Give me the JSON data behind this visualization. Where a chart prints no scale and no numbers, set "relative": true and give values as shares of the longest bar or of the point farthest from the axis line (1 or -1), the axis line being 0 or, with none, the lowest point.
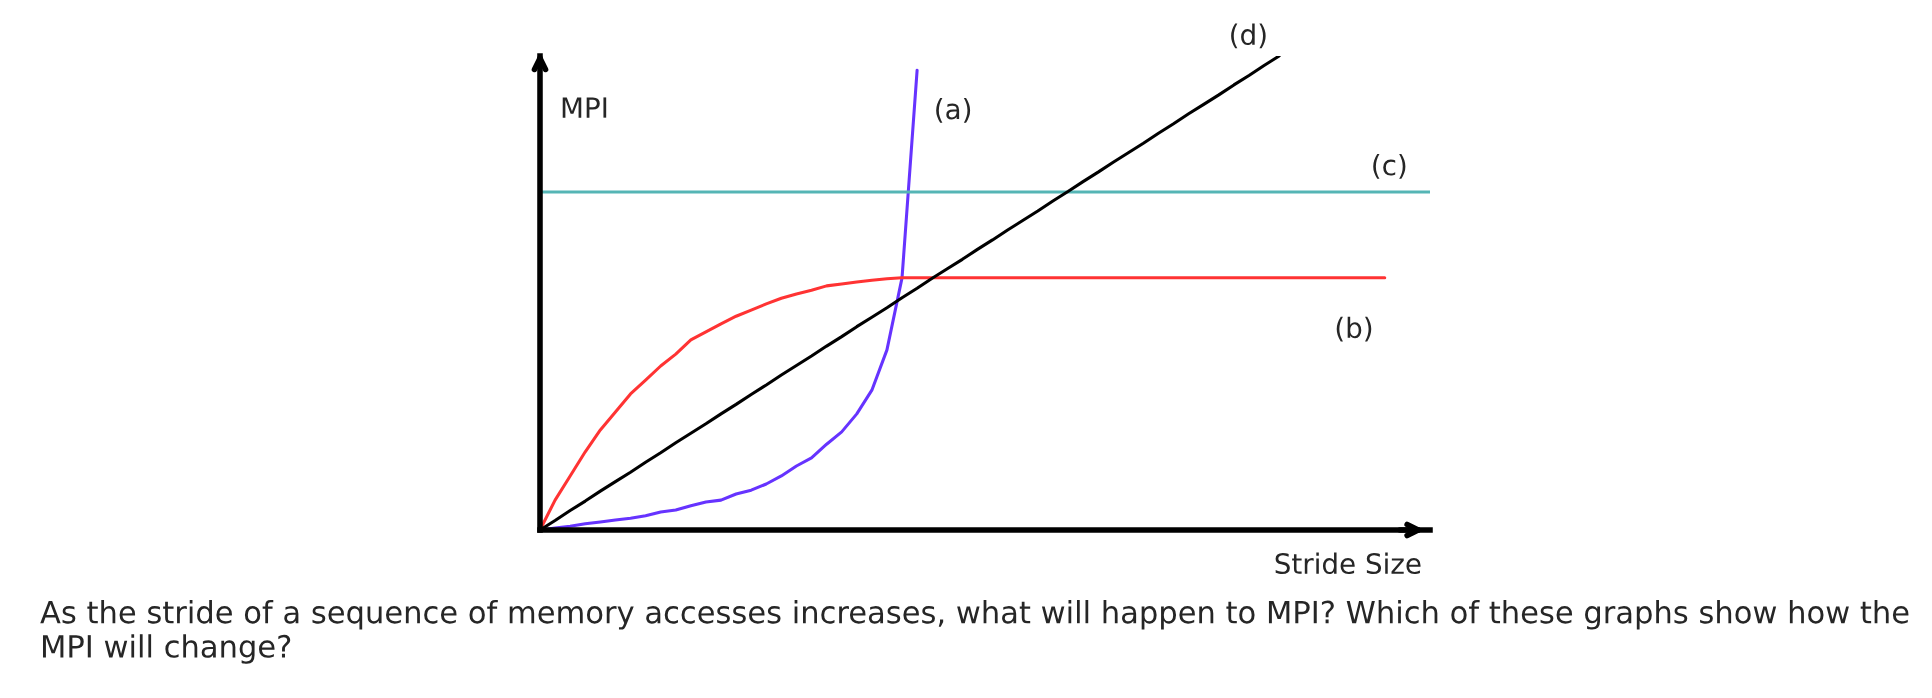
{
  "chart_data": {
    "type": "line",
    "relative": true,
    "xlabel": "Stride Size",
    "ylabel": "MPI",
    "tick_labels": false,
    "legend": false,
    "annotations": [
      "As the stride of a sequence of memory accesses increases, what will happen to MPI? Which of these graphs show how the MPI will change?"
    ],
    "categories": [
      null,
      null,
      null,
      null,
      null,
      null,
      null,
      null,
      null,
      null,
      null,
      null,
      null,
      null,
      null,
      null,
      null,
      null,
      null,
      null,
      null,
      null,
      null,
      null,
      null,
      null,
      null,
      null,
      null,
      null,
      null,
      null,
      null,
      null,
      null,
      null,
      null,
      null,
      null,
      null,
      null,
      null,
      null,
      null,
      null,
      null,
      null,
      null,
      null,
      null,
      null,
      null,
      null,
      null,
      null,
      null,
      null,
      null,
      null,
      null
    ],
    "series": [
      {
        "name": "(a)",
        "color": "#6633ff",
        "values": [
          0,
          0.004,
          0.008,
          0.013,
          0.017,
          0.021,
          0.025,
          0.03,
          0.038,
          0.042,
          0.051,
          0.059,
          0.063,
          0.076,
          0.084,
          0.097,
          0.114,
          0.135,
          0.152,
          0.181,
          0.207,
          0.245,
          0.295,
          0.38,
          0.532,
          0.97,
          null,
          null,
          null,
          null,
          null,
          null,
          null,
          null,
          null,
          null,
          null,
          null,
          null,
          null,
          null,
          null,
          null,
          null,
          null,
          null,
          null,
          null,
          null,
          null,
          null,
          null,
          null,
          null,
          null,
          null,
          null,
          null,
          null,
          null
        ]
      },
      {
        "name": "(b)",
        "color": "#ff3333",
        "values": [
          0,
          0.063,
          0.114,
          0.165,
          0.211,
          0.249,
          0.287,
          0.316,
          0.346,
          0.371,
          0.401,
          0.418,
          0.435,
          0.451,
          0.464,
          0.477,
          0.489,
          0.498,
          0.506,
          0.515,
          0.519,
          0.523,
          0.527,
          0.53,
          0.532,
          0.532,
          0.532,
          0.532,
          0.532,
          0.532,
          0.532,
          0.532,
          0.532,
          0.532,
          0.532,
          0.532,
          0.532,
          0.532,
          0.532,
          0.532,
          0.532,
          0.532,
          0.532,
          0.532,
          0.532,
          0.532,
          0.532,
          0.532,
          0.532,
          0.532,
          0.532,
          0.532,
          0.532,
          0.532,
          0.532,
          0.532,
          0.532,
          null,
          null,
          null
        ]
      },
      {
        "name": "(c)",
        "color": "#55b5b5",
        "values": [
          0.713,
          0.713,
          0.713,
          0.713,
          0.713,
          0.713,
          0.713,
          0.713,
          0.713,
          0.713,
          0.713,
          0.713,
          0.713,
          0.713,
          0.713,
          0.713,
          0.713,
          0.713,
          0.713,
          0.713,
          0.713,
          0.713,
          0.713,
          0.713,
          0.713,
          0.713,
          0.713,
          0.713,
          0.713,
          0.713,
          0.713,
          0.713,
          0.713,
          0.713,
          0.713,
          0.713,
          0.713,
          0.713,
          0.713,
          0.713,
          0.713,
          0.713,
          0.713,
          0.713,
          0.713,
          0.713,
          0.713,
          0.713,
          0.713,
          0.713,
          0.713,
          0.713,
          0.713,
          0.713,
          0.713,
          0.713,
          0.713,
          0.713,
          0.713,
          0.713
        ]
      },
      {
        "name": "(d)",
        "color": "#000000",
        "values": [
          0,
          0.02,
          0.041,
          0.061,
          0.082,
          0.102,
          0.122,
          0.143,
          0.163,
          0.184,
          0.204,
          0.224,
          0.245,
          0.265,
          0.286,
          0.306,
          0.327,
          0.347,
          0.367,
          0.388,
          0.408,
          0.429,
          0.449,
          0.469,
          0.49,
          0.51,
          0.531,
          0.551,
          0.571,
          0.592,
          0.612,
          0.633,
          0.653,
          0.673,
          0.694,
          0.714,
          0.735,
          0.755,
          0.776,
          0.796,
          0.816,
          0.837,
          0.857,
          0.878,
          0.898,
          0.918,
          0.939,
          0.959,
          0.98,
          1.0,
          null,
          null,
          null,
          null,
          null,
          null,
          null,
          null,
          null,
          null
        ]
      }
    ]
  }
}
